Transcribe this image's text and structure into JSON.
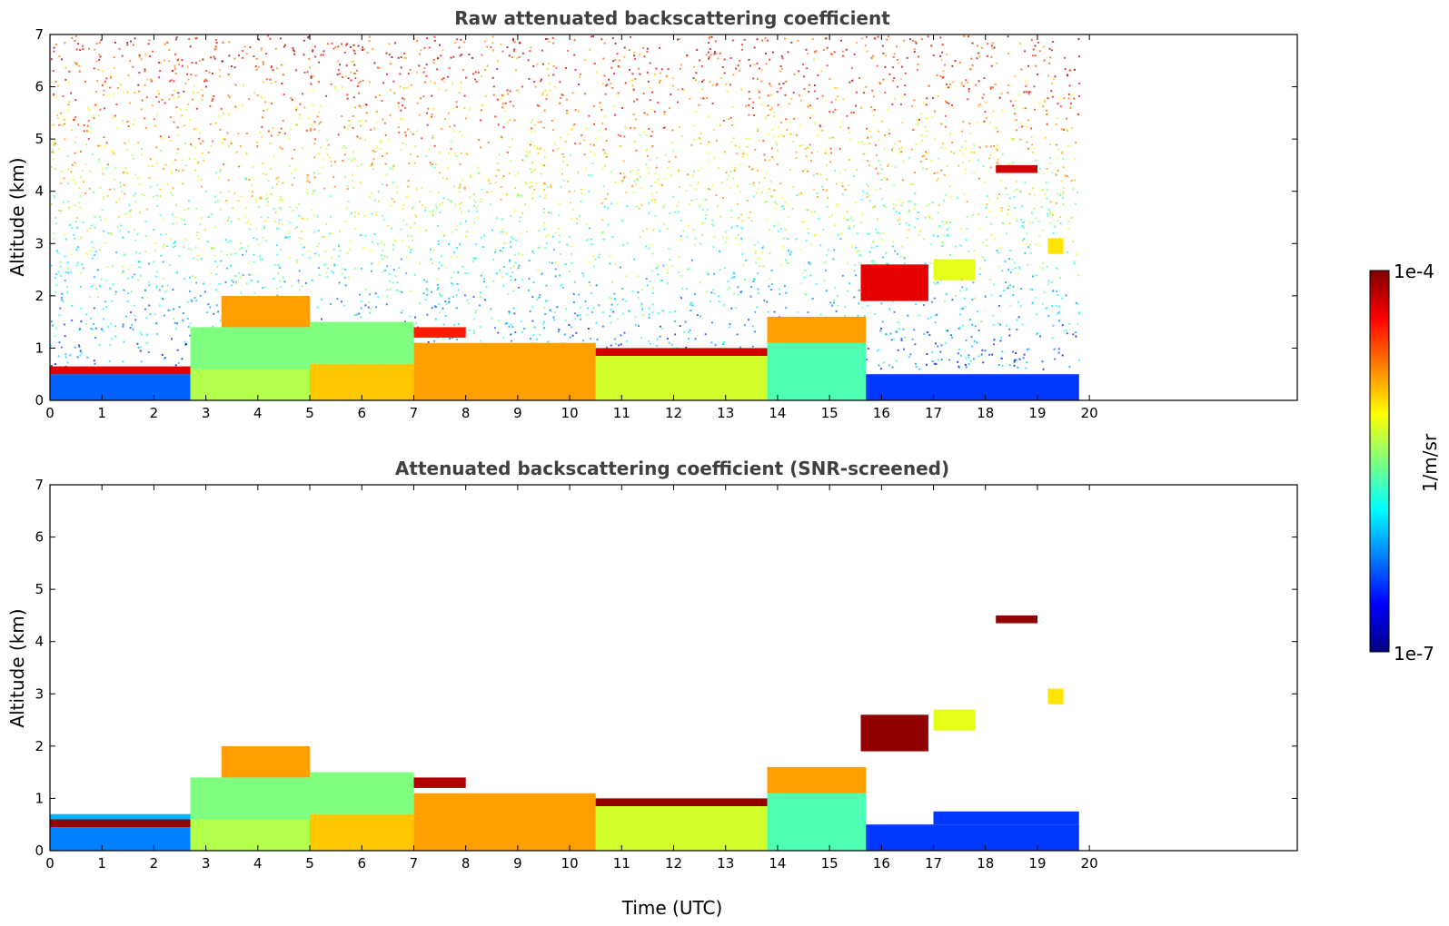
{
  "colormap": [
    "#00007f",
    "#0000ff",
    "#007fff",
    "#00ffff",
    "#7fff7f",
    "#ffff00",
    "#ff7f00",
    "#ff0000",
    "#7f0000"
  ],
  "chart_data": [
    {
      "type": "heatmap",
      "title": "Raw attenuated backscattering coefficient",
      "ylabel": "Altitude (km)",
      "xlabel": "",
      "xlim": [
        0,
        24
      ],
      "ylim": [
        0,
        7
      ],
      "xticks": [
        "0",
        "1",
        "2",
        "3",
        "4",
        "5",
        "6",
        "7",
        "8",
        "9",
        "10",
        "11",
        "12",
        "13",
        "14",
        "15",
        "16",
        "17",
        "18",
        "19",
        "20"
      ],
      "yticks": [
        "0",
        "1",
        "2",
        "3",
        "4",
        "5",
        "6",
        "7"
      ],
      "data_end_time": 19.8,
      "layers": [
        {
          "x0": 0,
          "x1": 2.7,
          "y0": 0.0,
          "y1": 0.5,
          "level": 0.22
        },
        {
          "x0": 0,
          "x1": 2.7,
          "y0": 0.5,
          "y1": 0.65,
          "level": 0.9
        },
        {
          "x0": 2.7,
          "x1": 5.0,
          "y0": 0.0,
          "y1": 0.6,
          "level": 0.55
        },
        {
          "x0": 2.7,
          "x1": 5.0,
          "y0": 0.6,
          "y1": 1.4,
          "level": 0.5
        },
        {
          "x0": 3.3,
          "x1": 5.0,
          "y0": 1.4,
          "y1": 2.0,
          "level": 0.72
        },
        {
          "x0": 5.0,
          "x1": 7.0,
          "y0": 0.0,
          "y1": 0.7,
          "level": 0.68
        },
        {
          "x0": 5.0,
          "x1": 7.0,
          "y0": 0.7,
          "y1": 1.5,
          "level": 0.5
        },
        {
          "x0": 7.0,
          "x1": 10.5,
          "y0": 0.0,
          "y1": 1.1,
          "level": 0.72
        },
        {
          "x0": 7.0,
          "x1": 8.0,
          "y0": 1.2,
          "y1": 1.4,
          "level": 0.85
        },
        {
          "x0": 10.5,
          "x1": 13.8,
          "y0": 0.0,
          "y1": 0.95,
          "level": 0.58
        },
        {
          "x0": 10.5,
          "x1": 13.8,
          "y0": 0.85,
          "y1": 1.0,
          "level": 0.92
        },
        {
          "x0": 13.8,
          "x1": 15.7,
          "y0": 0.0,
          "y1": 1.2,
          "level": 0.45
        },
        {
          "x0": 13.8,
          "x1": 15.7,
          "y0": 1.1,
          "y1": 1.6,
          "level": 0.72
        },
        {
          "x0": 15.7,
          "x1": 19.8,
          "y0": 0.0,
          "y1": 0.5,
          "level": 0.18
        },
        {
          "x0": 15.6,
          "x1": 16.9,
          "y0": 1.9,
          "y1": 2.6,
          "level": 0.9
        },
        {
          "x0": 17.0,
          "x1": 17.8,
          "y0": 2.3,
          "y1": 2.7,
          "level": 0.6
        },
        {
          "x0": 18.2,
          "x1": 19.0,
          "y0": 4.35,
          "y1": 4.5,
          "level": 0.92
        },
        {
          "x0": 19.2,
          "x1": 19.5,
          "y0": 2.8,
          "y1": 3.1,
          "level": 0.65
        }
      ]
    },
    {
      "type": "heatmap",
      "title": "Attenuated backscattering coefficient (SNR-screened)",
      "ylabel": "Altitude (km)",
      "xlabel": "Time (UTC)",
      "xlim": [
        0,
        24
      ],
      "ylim": [
        0,
        7
      ],
      "xticks": [
        "0",
        "1",
        "2",
        "3",
        "4",
        "5",
        "6",
        "7",
        "8",
        "9",
        "10",
        "11",
        "12",
        "13",
        "14",
        "15",
        "16",
        "17",
        "18",
        "19",
        "20"
      ],
      "yticks": [
        "0",
        "1",
        "2",
        "3",
        "4",
        "5",
        "6",
        "7"
      ],
      "data_end_time": 19.8,
      "layers": [
        {
          "x0": 0,
          "x1": 2.7,
          "y0": 0.0,
          "y1": 0.45,
          "level": 0.25
        },
        {
          "x0": 0,
          "x1": 2.7,
          "y0": 0.45,
          "y1": 0.6,
          "level": 0.98
        },
        {
          "x0": 0,
          "x1": 2.7,
          "y0": 0.6,
          "y1": 0.7,
          "level": 0.3
        },
        {
          "x0": 2.7,
          "x1": 5.0,
          "y0": 0.0,
          "y1": 0.6,
          "level": 0.55
        },
        {
          "x0": 2.7,
          "x1": 5.0,
          "y0": 0.6,
          "y1": 1.4,
          "level": 0.5
        },
        {
          "x0": 3.3,
          "x1": 5.0,
          "y0": 1.4,
          "y1": 2.0,
          "level": 0.72
        },
        {
          "x0": 5.0,
          "x1": 7.0,
          "y0": 0.0,
          "y1": 0.7,
          "level": 0.68
        },
        {
          "x0": 5.0,
          "x1": 7.0,
          "y0": 0.7,
          "y1": 1.5,
          "level": 0.5
        },
        {
          "x0": 7.0,
          "x1": 10.5,
          "y0": 0.0,
          "y1": 1.1,
          "level": 0.72
        },
        {
          "x0": 7.0,
          "x1": 8.0,
          "y0": 1.2,
          "y1": 1.4,
          "level": 0.95
        },
        {
          "x0": 10.5,
          "x1": 13.8,
          "y0": 0.0,
          "y1": 0.95,
          "level": 0.58
        },
        {
          "x0": 10.5,
          "x1": 13.8,
          "y0": 0.85,
          "y1": 1.0,
          "level": 0.98
        },
        {
          "x0": 13.8,
          "x1": 15.7,
          "y0": 0.0,
          "y1": 1.2,
          "level": 0.45
        },
        {
          "x0": 13.8,
          "x1": 15.7,
          "y0": 1.1,
          "y1": 1.6,
          "level": 0.72
        },
        {
          "x0": 15.7,
          "x1": 19.8,
          "y0": 0.0,
          "y1": 0.5,
          "level": 0.18
        },
        {
          "x0": 17.0,
          "x1": 19.8,
          "y0": 0.5,
          "y1": 0.75,
          "level": 0.18
        },
        {
          "x0": 15.6,
          "x1": 16.9,
          "y0": 1.9,
          "y1": 2.6,
          "level": 0.98
        },
        {
          "x0": 17.0,
          "x1": 17.8,
          "y0": 2.3,
          "y1": 2.7,
          "level": 0.6
        },
        {
          "x0": 18.2,
          "x1": 19.0,
          "y0": 4.35,
          "y1": 4.5,
          "level": 0.98
        },
        {
          "x0": 19.2,
          "x1": 19.5,
          "y0": 2.8,
          "y1": 3.1,
          "level": 0.65
        }
      ]
    }
  ],
  "colorbar": {
    "label": "1/m/sr",
    "max_label": "1e-4",
    "min_label": "1e-7",
    "scale": "log",
    "range": [
      1e-07,
      0.0001
    ]
  }
}
